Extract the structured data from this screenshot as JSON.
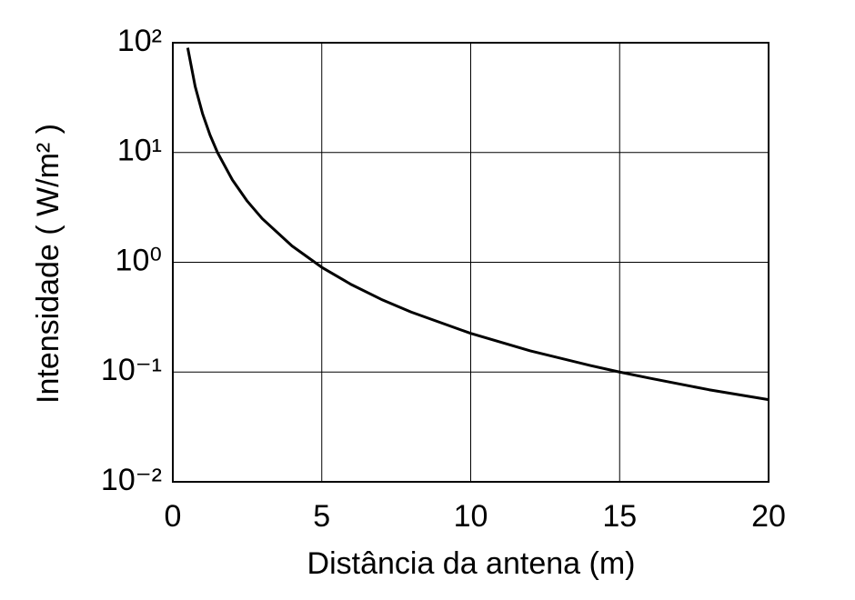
{
  "chart_data": {
    "type": "line",
    "xlabel": "Distância da antena (m)",
    "ylabel": "Intensidade ( W/m² )",
    "x": [
      0.5,
      0.75,
      1,
      1.25,
      1.5,
      2,
      2.5,
      3,
      4,
      5,
      6,
      7,
      8,
      10,
      12,
      14,
      15,
      16,
      18,
      20
    ],
    "series": [
      {
        "color": "#000000",
        "values": [
          90,
          40,
          22.5,
          14.4,
          10,
          5.63,
          3.6,
          2.5,
          1.41,
          0.9,
          0.625,
          0.459,
          0.352,
          0.225,
          0.156,
          0.115,
          0.1,
          0.088,
          0.069,
          0.056
        ]
      }
    ],
    "xlim": [
      0,
      20
    ],
    "xticks": [
      0,
      5,
      10,
      15,
      20
    ],
    "ylim": [
      0.01,
      100
    ],
    "ylog": true,
    "yticks": [
      {
        "value": 0.01,
        "label": "10⁻²"
      },
      {
        "value": 0.1,
        "label": "10⁻¹"
      },
      {
        "value": 1,
        "label": "10⁰"
      },
      {
        "value": 10,
        "label": "10¹"
      },
      {
        "value": 100,
        "label": "10²"
      }
    ],
    "grid": true
  }
}
